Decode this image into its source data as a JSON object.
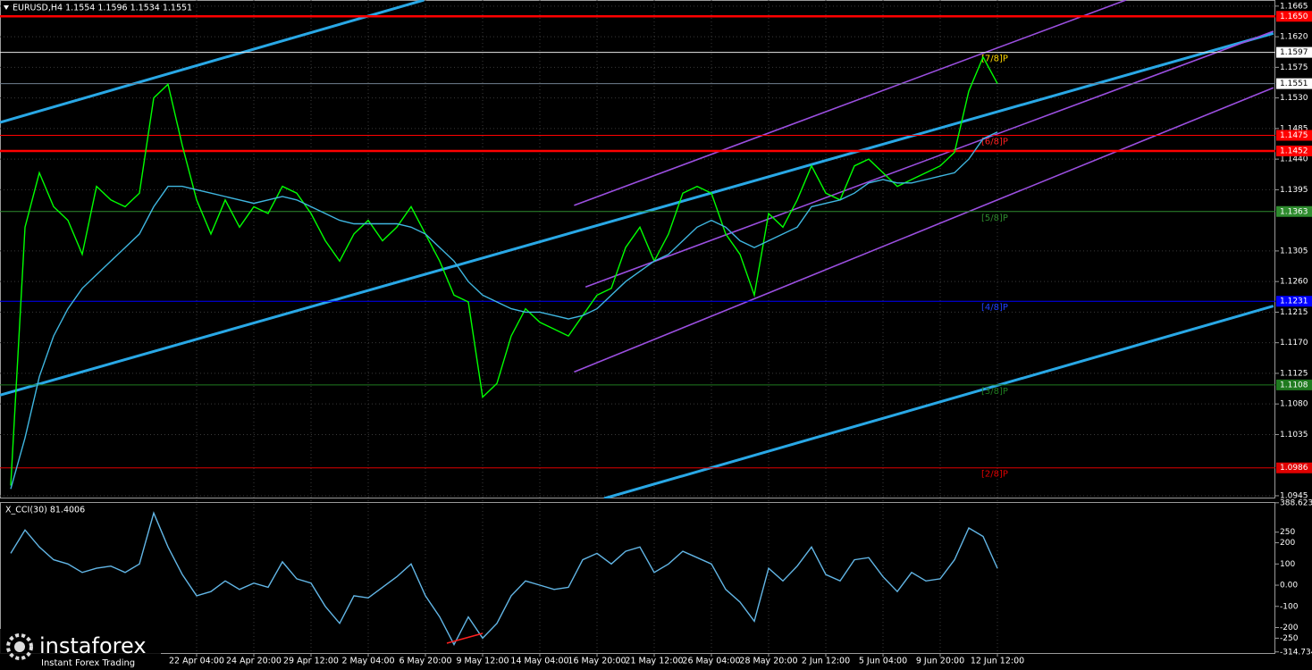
{
  "chart_data": [
    {
      "type": "line",
      "title": "EURUSD,H4  1.1554 1.1596 1.1534 1.1551",
      "categories": [
        null,
        null,
        null,
        null,
        null,
        null,
        null,
        null,
        null,
        null,
        null,
        null,
        null,
        "22 Apr 04:00",
        null,
        null,
        null,
        "24 Apr 20:00",
        null,
        null,
        null,
        "29 Apr 12:00",
        null,
        null,
        null,
        "2 May 04:00",
        null,
        null,
        null,
        "6 May 20:00",
        null,
        null,
        null,
        "9 May 12:00",
        null,
        null,
        null,
        "14 May 04:00",
        null,
        null,
        null,
        "16 May 20:00",
        null,
        null,
        null,
        "21 May 12:00",
        null,
        null,
        null,
        "26 May 04:00",
        null,
        null,
        null,
        "28 May 20:00",
        null,
        null,
        null,
        "2 Jun 12:00",
        null,
        null,
        null,
        "5 Jun 04:00",
        null,
        null,
        null,
        "9 Jun 20:00",
        null,
        null,
        null,
        "12 Jun 12:00"
      ],
      "series": [
        {
          "color": "#00ff00",
          "values": [
            1.096,
            1.134,
            1.142,
            1.137,
            1.135,
            1.13,
            1.14,
            1.138,
            1.137,
            1.139,
            1.153,
            1.155,
            1.146,
            1.138,
            1.133,
            1.138,
            1.134,
            1.137,
            1.136,
            1.14,
            1.139,
            1.136,
            1.132,
            1.129,
            1.133,
            1.135,
            1.132,
            1.134,
            1.137,
            1.133,
            1.129,
            1.124,
            1.123,
            1.109,
            1.111,
            1.118,
            1.122,
            1.12,
            1.119,
            1.118,
            1.121,
            1.124,
            1.125,
            1.131,
            1.134,
            1.129,
            1.133,
            1.139,
            1.14,
            1.139,
            1.133,
            1.13,
            1.124,
            1.136,
            1.134,
            1.138,
            1.143,
            1.139,
            1.138,
            1.143,
            1.144,
            1.142,
            1.14,
            1.141,
            1.142,
            1.143,
            1.145,
            1.154,
            1.159,
            1.1551
          ]
        },
        {
          "color": "#3fb6e0",
          "values": [
            1.0955,
            1.103,
            1.112,
            1.118,
            1.122,
            1.125,
            1.127,
            1.129,
            1.131,
            1.133,
            1.137,
            1.14,
            1.14,
            1.1395,
            1.139,
            1.1385,
            1.138,
            1.1375,
            1.138,
            1.1385,
            1.138,
            1.137,
            1.136,
            1.135,
            1.1345,
            1.1345,
            1.1345,
            1.1345,
            1.134,
            1.133,
            1.131,
            1.129,
            1.126,
            1.124,
            1.123,
            1.122,
            1.1215,
            1.1215,
            1.121,
            1.1205,
            1.121,
            1.122,
            1.124,
            1.126,
            1.1275,
            1.129,
            1.13,
            1.132,
            1.134,
            1.135,
            1.134,
            1.132,
            1.131,
            1.132,
            1.133,
            1.134,
            1.137,
            1.1375,
            1.138,
            1.139,
            1.1405,
            1.141,
            1.1405,
            1.1405,
            1.141,
            1.1415,
            1.142,
            1.144,
            1.147,
            1.148
          ]
        }
      ],
      "ylim": [
        1.0941,
        1.1674
      ],
      "yticks": [
        1.1665,
        {
          "value": 1.162,
          "label": "1.1620"
        },
        1.1575,
        {
          "value": 1.153,
          "label": "1.1530"
        },
        1.1485,
        {
          "value": 1.144,
          "label": "1.1440"
        },
        1.1395,
        1.1305,
        {
          "value": 1.126,
          "label": "1.1260"
        },
        1.1215,
        {
          "value": 1.117,
          "label": "1.1170"
        },
        1.1125,
        {
          "value": 1.108,
          "label": "1.1080"
        },
        1.1035,
        1.0945
      ],
      "grid": true,
      "levels": [
        {
          "value": 1.165,
          "label": "1.1650",
          "color": "#ff0000",
          "thick": true
        },
        {
          "value": 1.1597,
          "label": "1.1597",
          "color": "#e8e8e8",
          "tag": "[7/8]P",
          "tag_color": "#ffd700"
        },
        {
          "value": 1.1551,
          "label": "1.1551",
          "color": "#708090"
        },
        {
          "value": 1.1475,
          "label": "1.1475",
          "color": "#ff0000",
          "tag": "[6/8]P",
          "tag_color": "#ff2020"
        },
        {
          "value": 1.1452,
          "label": "1.1452",
          "color": "#ff0000",
          "thick": true
        },
        {
          "value": 1.1363,
          "label": "1.1363",
          "color": "#2e8b2e",
          "tag": "[5/8]P",
          "tag_color": "#2e8b2e"
        },
        {
          "value": 1.1231,
          "label": "1.1231",
          "color": "#0000ff",
          "tag": "[4/8]P",
          "tag_color": "#2040ff"
        },
        {
          "value": 1.1108,
          "label": "1.1108",
          "color": "#1f7a1f",
          "tag": "[3/8]P",
          "tag_color": "#1f7a1f"
        },
        {
          "value": 1.0986,
          "label": "1.0986",
          "color": "#e00000",
          "tag": "[2/8]P",
          "tag_color": "#e00000"
        }
      ],
      "trendlines": [
        {
          "color": "#29a8e6",
          "points": [
            [
              -0.75,
              1.1494
            ],
            [
              28.9,
              1.1674
            ]
          ]
        },
        {
          "color": "#29a8e6",
          "points": [
            [
              -0.75,
              1.1093
            ],
            [
              88.3,
              1.1625
            ]
          ]
        },
        {
          "color": "#29a8e6",
          "points": [
            [
              41.5,
              1.0941
            ],
            [
              88.3,
              1.1224
            ]
          ]
        },
        {
          "color": "#9b4fe0",
          "points": [
            [
              39.4,
              1.1372
            ],
            [
              78,
              1.1674
            ]
          ]
        },
        {
          "color": "#9b4fe0",
          "points": [
            [
              40.2,
              1.1252
            ],
            [
              88.3,
              1.1628
            ]
          ]
        },
        {
          "color": "#9b4fe0",
          "points": [
            [
              39.4,
              1.1127
            ],
            [
              88.3,
              1.1545
            ]
          ]
        }
      ]
    },
    {
      "type": "line",
      "title": "X_CCI(30) 81.4006",
      "series": [
        {
          "color": "#62b6e6",
          "values": [
            150,
            260,
            180,
            120,
            100,
            60,
            80,
            90,
            60,
            100,
            340,
            180,
            50,
            -50,
            -30,
            20,
            -20,
            10,
            -10,
            110,
            30,
            10,
            -100,
            -180,
            -50,
            -60,
            -10,
            40,
            100,
            -50,
            -150,
            -280,
            -150,
            -250,
            -180,
            -50,
            20,
            0,
            -20,
            -10,
            120,
            150,
            100,
            160,
            180,
            60,
            100,
            160,
            130,
            100,
            -20,
            -80,
            -170,
            80,
            20,
            90,
            180,
            50,
            20,
            120,
            130,
            40,
            -30,
            60,
            20,
            30,
            120,
            270,
            230,
            80
          ]
        }
      ],
      "ylim": [
        -320,
        392
      ],
      "yticks": [
        388.6237,
        250,
        200,
        100,
        {
          "value": 0,
          "label": "0.00"
        },
        -100,
        -200,
        -250,
        -314.734
      ],
      "grid": false
    }
  ],
  "watermark": {
    "brand": "instaforex",
    "tagline": "Instant Forex Trading"
  }
}
